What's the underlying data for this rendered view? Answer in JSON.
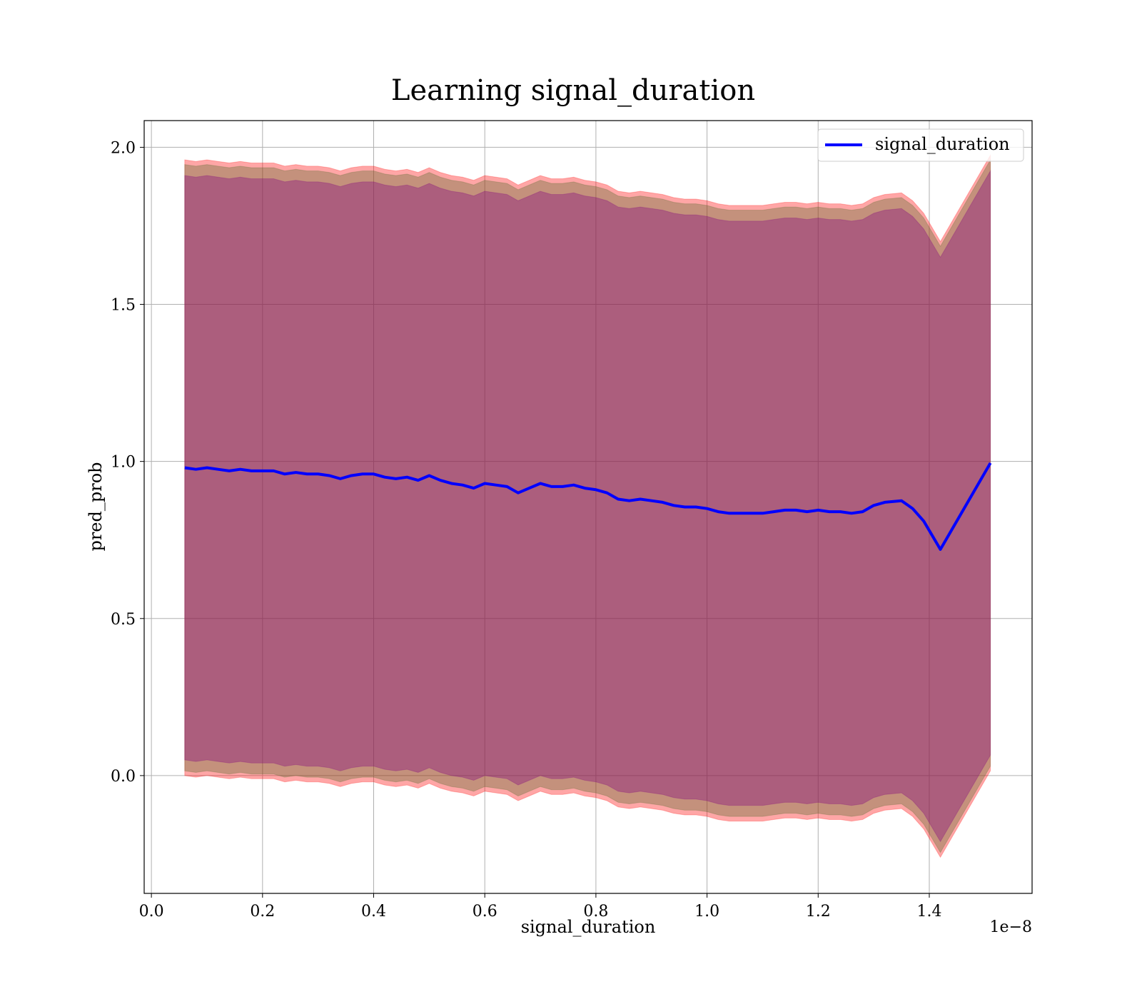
{
  "chart_data": {
    "type": "line",
    "title": "Learning signal_duration",
    "xlabel": "signal_duration",
    "ylabel": "pred_prob",
    "x_offset_text": "1e−8",
    "xlim": [
      -0.013,
      1.585
    ],
    "ylim": [
      -0.375,
      2.085
    ],
    "grid": true,
    "legend_position": "top-right",
    "x_ticks": [
      "0.0",
      "0.2",
      "0.4",
      "0.6",
      "0.8",
      "1.0",
      "1.2",
      "1.4"
    ],
    "y_ticks": [
      "0.0",
      "0.5",
      "1.0",
      "1.5",
      "2.0"
    ],
    "series": [
      {
        "name": "signal_duration",
        "color": "#0000ff",
        "x": [
          0.06,
          0.08,
          0.1,
          0.12,
          0.14,
          0.16,
          0.18,
          0.2,
          0.22,
          0.24,
          0.26,
          0.28,
          0.3,
          0.32,
          0.34,
          0.36,
          0.38,
          0.4,
          0.42,
          0.44,
          0.46,
          0.48,
          0.5,
          0.52,
          0.54,
          0.56,
          0.58,
          0.6,
          0.62,
          0.64,
          0.66,
          0.68,
          0.7,
          0.72,
          0.74,
          0.76,
          0.78,
          0.8,
          0.82,
          0.84,
          0.86,
          0.88,
          0.9,
          0.92,
          0.94,
          0.96,
          0.98,
          1.0,
          1.02,
          1.04,
          1.06,
          1.08,
          1.1,
          1.12,
          1.14,
          1.16,
          1.18,
          1.2,
          1.22,
          1.24,
          1.26,
          1.28,
          1.3,
          1.32,
          1.35,
          1.37,
          1.39,
          1.42,
          1.51
        ],
        "values": [
          0.98,
          0.975,
          0.98,
          0.975,
          0.97,
          0.975,
          0.97,
          0.97,
          0.97,
          0.96,
          0.965,
          0.96,
          0.96,
          0.955,
          0.945,
          0.955,
          0.96,
          0.96,
          0.95,
          0.945,
          0.95,
          0.94,
          0.955,
          0.94,
          0.93,
          0.925,
          0.915,
          0.93,
          0.925,
          0.92,
          0.9,
          0.915,
          0.93,
          0.92,
          0.92,
          0.925,
          0.915,
          0.91,
          0.9,
          0.88,
          0.875,
          0.88,
          0.875,
          0.87,
          0.86,
          0.855,
          0.855,
          0.85,
          0.84,
          0.835,
          0.835,
          0.835,
          0.835,
          0.84,
          0.845,
          0.845,
          0.84,
          0.845,
          0.84,
          0.84,
          0.835,
          0.84,
          0.86,
          0.87,
          0.875,
          0.85,
          0.81,
          0.72,
          0.995
        ]
      }
    ],
    "bands": [
      {
        "color": "#ff0000",
        "opacity": 0.35,
        "half_width": 0.98
      },
      {
        "color": "#556b2f",
        "opacity": 0.35,
        "half_width": 0.965
      },
      {
        "color": "#800080",
        "opacity": 0.35,
        "half_width": 0.93
      }
    ],
    "colors": {
      "axes_edge": "#000000",
      "grid": "#b0b0b0"
    }
  }
}
